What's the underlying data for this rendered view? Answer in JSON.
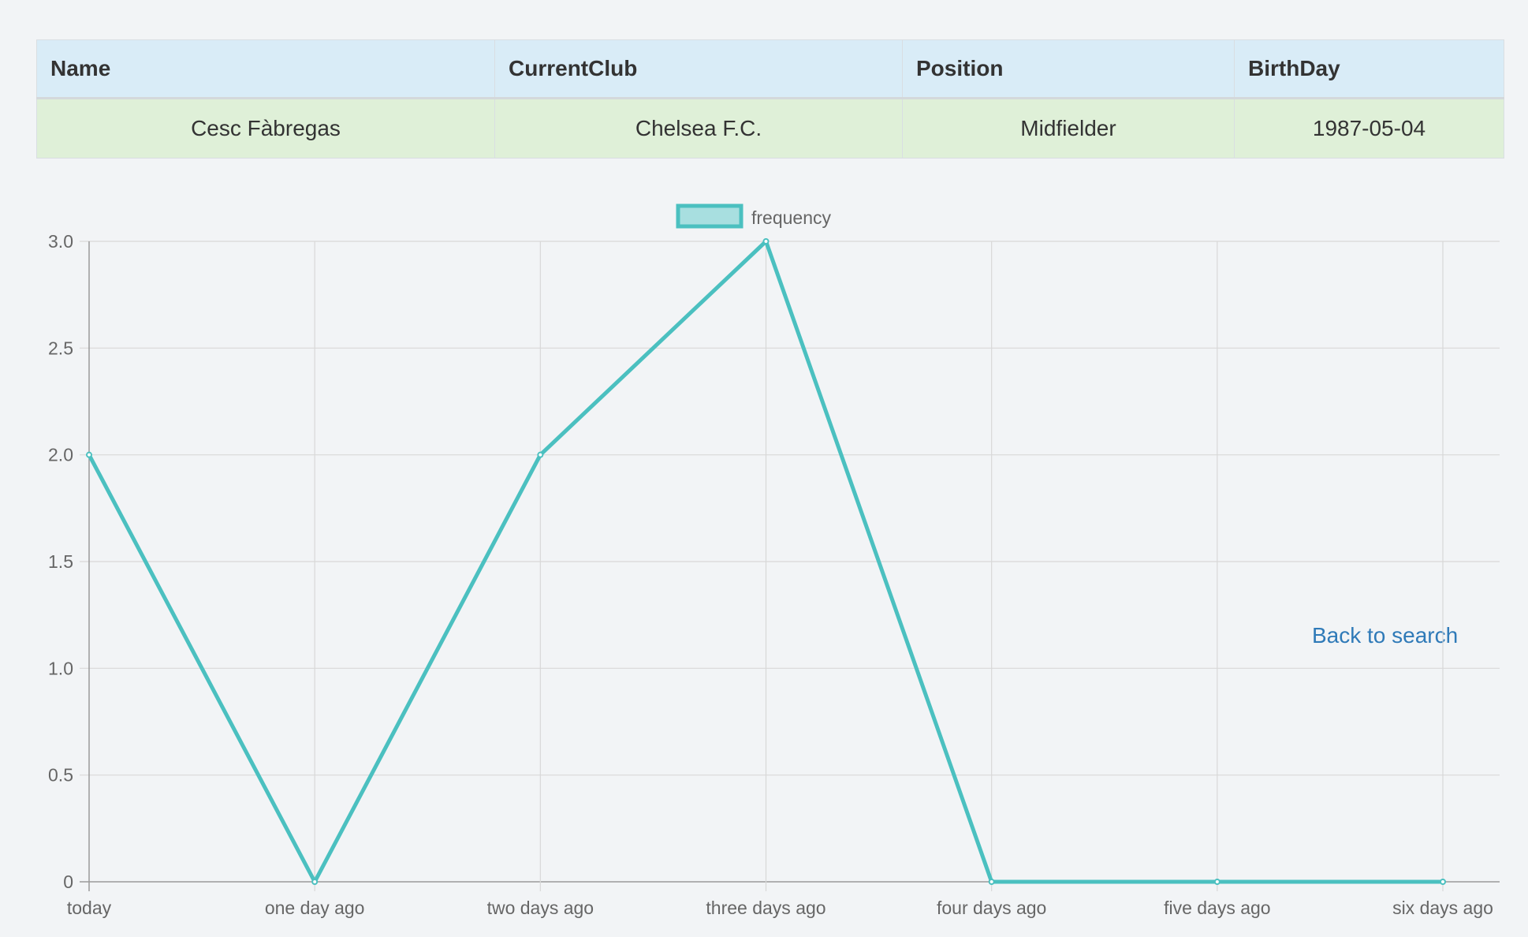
{
  "table": {
    "headers": [
      "Name",
      "CurrentClub",
      "Position",
      "BirthDay"
    ],
    "row": [
      "Cesc Fàbregas",
      "Chelsea F.C.",
      "Midfielder",
      "1987-05-04"
    ]
  },
  "back_link_label": "Back to search",
  "chart_data": {
    "type": "line",
    "categories": [
      "today",
      "one day ago",
      "two days ago",
      "three days ago",
      "four days ago",
      "five days ago",
      "six days ago"
    ],
    "series": [
      {
        "name": "frequency",
        "values": [
          2,
          0,
          2,
          3,
          0,
          0,
          0
        ],
        "color": "#4bc0c0",
        "fill": "#a8dfe0"
      }
    ],
    "y_ticks": [
      "0",
      "0.5",
      "1.0",
      "1.5",
      "2.0",
      "2.5",
      "3.0"
    ],
    "ylim": [
      0,
      3
    ],
    "grid": true,
    "legend": "top"
  }
}
